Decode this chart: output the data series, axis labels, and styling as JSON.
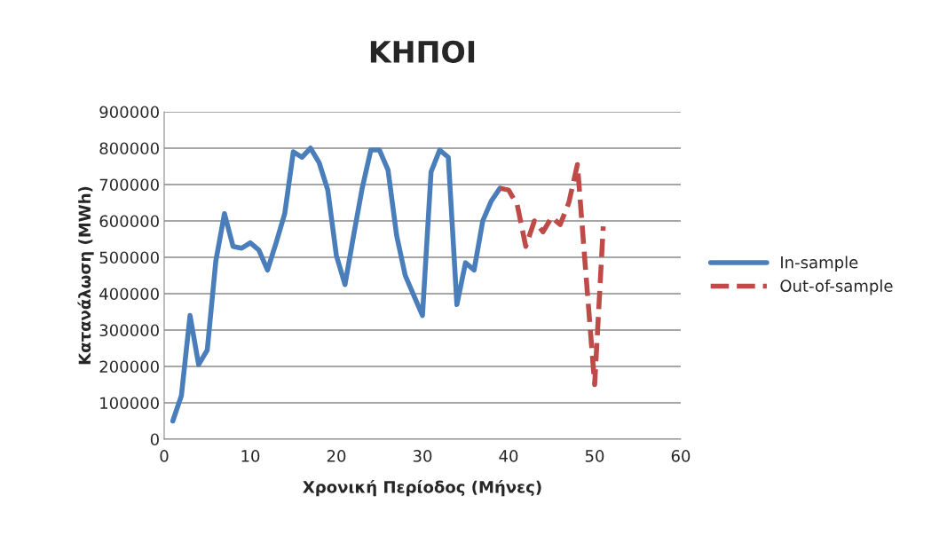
{
  "chart_data": {
    "type": "line",
    "title": "ΚΗΠΟΙ",
    "xlabel": "Χρονική Περίοδος (Μήνες)",
    "ylabel": "Κατανάλωση (MWh)",
    "xlim": [
      0,
      60
    ],
    "xticks": [
      0,
      10,
      20,
      30,
      40,
      50,
      60
    ],
    "ylim": [
      0,
      900000
    ],
    "yticks": [
      0,
      100000,
      200000,
      300000,
      400000,
      500000,
      600000,
      700000,
      800000,
      900000
    ],
    "grid": "y",
    "legend": "right",
    "series": [
      {
        "name": "In-sample",
        "color": "#4a7ebb",
        "line_style": "solid",
        "x": [
          1,
          2,
          3,
          4,
          5,
          6,
          7,
          8,
          9,
          10,
          11,
          12,
          13,
          14,
          15,
          16,
          17,
          18,
          19,
          20,
          21,
          22,
          23,
          24,
          25,
          26,
          27,
          28,
          29,
          30,
          31,
          32,
          33,
          34,
          35,
          36,
          37,
          38,
          39
        ],
        "values": [
          50000,
          120000,
          340000,
          205000,
          245000,
          490000,
          620000,
          530000,
          525000,
          540000,
          520000,
          465000,
          540000,
          620000,
          790000,
          775000,
          800000,
          760000,
          685000,
          505000,
          425000,
          560000,
          690000,
          795000,
          795000,
          740000,
          560000,
          450000,
          395000,
          340000,
          735000,
          795000,
          775000,
          370000,
          485000,
          465000,
          600000,
          655000,
          690000
        ]
      },
      {
        "name": "Out-of-sample",
        "color": "#be4b48",
        "line_style": "dashed",
        "x": [
          39,
          40,
          41,
          42,
          43,
          44,
          45,
          46,
          47,
          48,
          49,
          50,
          51
        ],
        "values": [
          690000,
          685000,
          645000,
          530000,
          600000,
          570000,
          610000,
          590000,
          650000,
          755000,
          450000,
          150000,
          585000
        ]
      }
    ]
  }
}
